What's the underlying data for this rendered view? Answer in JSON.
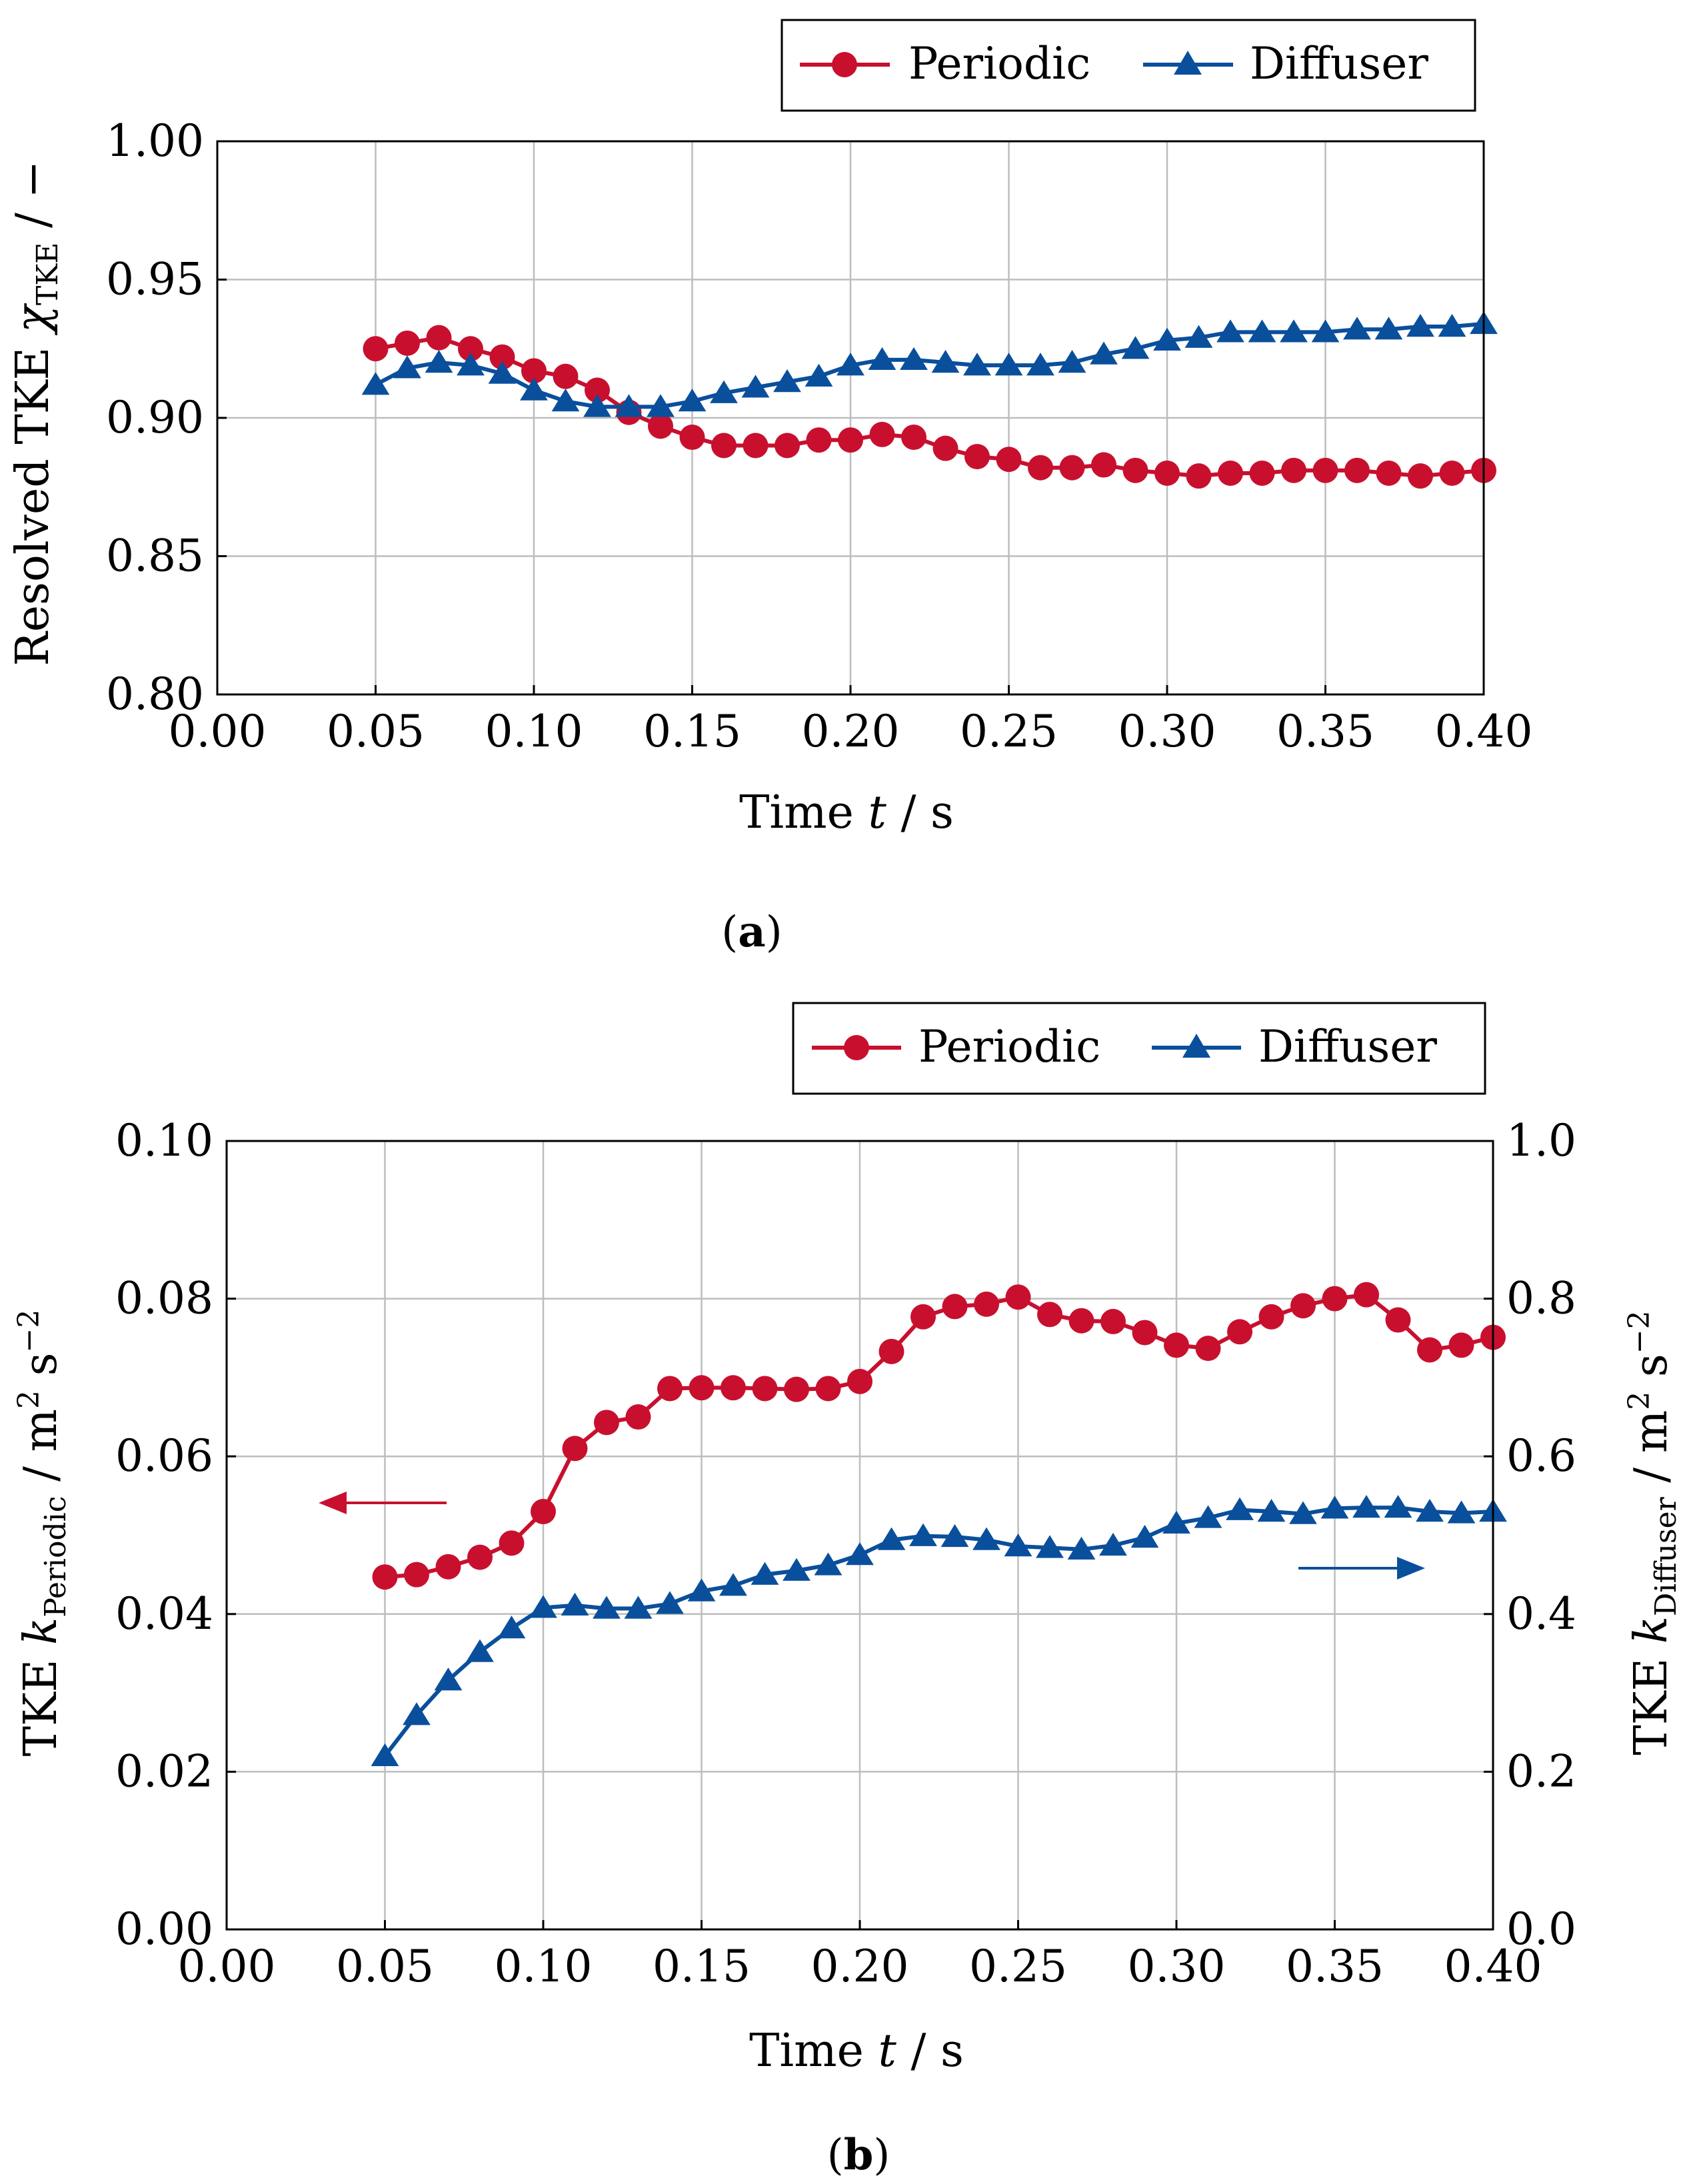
{
  "colors": {
    "periodic": "#c8102e",
    "diffuser": "#0a4f9c",
    "grid": "#bdbdbd",
    "axis": "#000000"
  },
  "chart_data": [
    {
      "panel": "a",
      "caption_label": "a",
      "type": "line",
      "xlabel": "Time t / s",
      "ylabel": "Resolved TKE χ_TKE / −",
      "xlim": [
        0.0,
        0.4
      ],
      "ylim": [
        0.8,
        1.0
      ],
      "xticks": [
        "0.00",
        "0.05",
        "0.10",
        "0.15",
        "0.20",
        "0.25",
        "0.30",
        "0.35",
        "0.40"
      ],
      "yticks": [
        "0.80",
        "0.85",
        "0.90",
        "0.95",
        "1.00"
      ],
      "legend": {
        "location": "top-right",
        "entries": [
          "Periodic",
          "Diffuser"
        ]
      },
      "x": [
        0.05,
        0.06,
        0.07,
        0.08,
        0.09,
        0.1,
        0.11,
        0.12,
        0.13,
        0.14,
        0.15,
        0.16,
        0.17,
        0.18,
        0.19,
        0.2,
        0.21,
        0.22,
        0.23,
        0.24,
        0.25,
        0.26,
        0.27,
        0.28,
        0.29,
        0.3,
        0.31,
        0.32,
        0.33,
        0.34,
        0.35,
        0.36,
        0.37,
        0.38,
        0.39,
        0.4
      ],
      "series": [
        {
          "name": "Periodic",
          "marker": "circle",
          "axis": "left",
          "values": [
            0.925,
            0.927,
            0.929,
            0.925,
            0.922,
            0.917,
            0.915,
            0.91,
            0.902,
            0.897,
            0.893,
            0.89,
            0.89,
            0.89,
            0.892,
            0.892,
            0.894,
            0.893,
            0.889,
            0.886,
            0.885,
            0.882,
            0.882,
            0.883,
            0.881,
            0.88,
            0.879,
            0.88,
            0.88,
            0.881,
            0.881,
            0.881,
            0.88,
            0.879,
            0.88,
            0.881
          ]
        },
        {
          "name": "Diffuser",
          "marker": "triangle",
          "axis": "left",
          "values": [
            0.912,
            0.918,
            0.92,
            0.919,
            0.916,
            0.91,
            0.906,
            0.904,
            0.904,
            0.904,
            0.906,
            0.909,
            0.911,
            0.913,
            0.915,
            0.919,
            0.921,
            0.921,
            0.92,
            0.919,
            0.919,
            0.919,
            0.92,
            0.923,
            0.925,
            0.928,
            0.929,
            0.931,
            0.931,
            0.931,
            0.931,
            0.932,
            0.932,
            0.933,
            0.933,
            0.934
          ]
        }
      ]
    },
    {
      "panel": "b",
      "caption_label": "b",
      "type": "line",
      "xlabel": "Time t / s",
      "ylabel_left": "TKE k_Periodic / m2 s−2",
      "ylabel_right": "TKE k_Diffuser / m2 s−2",
      "xlim": [
        0.0,
        0.4
      ],
      "ylim_left": [
        0.0,
        0.1
      ],
      "ylim_right": [
        0.0,
        1.0
      ],
      "xticks": [
        "0.00",
        "0.05",
        "0.10",
        "0.15",
        "0.20",
        "0.25",
        "0.30",
        "0.35",
        "0.40"
      ],
      "yticks_left": [
        "0.00",
        "0.02",
        "0.04",
        "0.06",
        "0.08",
        "0.10"
      ],
      "yticks_right": [
        "0.0",
        "0.2",
        "0.4",
        "0.6",
        "0.8",
        "1.0"
      ],
      "legend": {
        "location": "top-right",
        "entries": [
          "Periodic",
          "Diffuser"
        ]
      },
      "annotations": [
        "arrow pointing left (Periodic → left axis)",
        "arrow pointing right (Diffuser → right axis)"
      ],
      "x": [
        0.05,
        0.06,
        0.07,
        0.08,
        0.09,
        0.1,
        0.11,
        0.12,
        0.13,
        0.14,
        0.15,
        0.16,
        0.17,
        0.18,
        0.19,
        0.2,
        0.21,
        0.22,
        0.23,
        0.24,
        0.25,
        0.26,
        0.27,
        0.28,
        0.29,
        0.3,
        0.31,
        0.32,
        0.33,
        0.34,
        0.35,
        0.36,
        0.37,
        0.38,
        0.39,
        0.4
      ],
      "series": [
        {
          "name": "Periodic",
          "marker": "circle",
          "axis": "left",
          "values": [
            0.0447,
            0.045,
            0.046,
            0.0472,
            0.049,
            0.053,
            0.061,
            0.0643,
            0.065,
            0.0686,
            0.0687,
            0.0687,
            0.0686,
            0.0685,
            0.0686,
            0.0695,
            0.0733,
            0.0777,
            0.079,
            0.0793,
            0.0802,
            0.078,
            0.0772,
            0.0771,
            0.0757,
            0.0741,
            0.0737,
            0.0758,
            0.0777,
            0.0791,
            0.08,
            0.0805,
            0.0773,
            0.0735,
            0.0741,
            0.0751
          ]
        },
        {
          "name": "Diffuser",
          "marker": "triangle",
          "axis": "right",
          "values": [
            0.22,
            0.272,
            0.316,
            0.352,
            0.382,
            0.408,
            0.411,
            0.407,
            0.407,
            0.413,
            0.429,
            0.436,
            0.45,
            0.455,
            0.462,
            0.475,
            0.494,
            0.499,
            0.498,
            0.494,
            0.486,
            0.484,
            0.482,
            0.487,
            0.497,
            0.515,
            0.522,
            0.532,
            0.53,
            0.527,
            0.534,
            0.535,
            0.535,
            0.53,
            0.528,
            0.53
          ]
        }
      ]
    }
  ]
}
